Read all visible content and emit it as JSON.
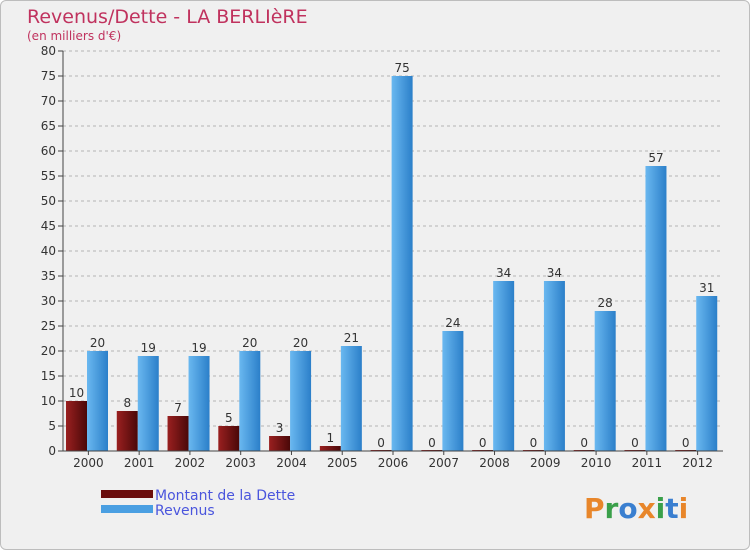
{
  "chart_data": {
    "type": "bar",
    "title": "Revenus/Dette - LA BERLIèRE",
    "subtitle": "(en milliers d'€)",
    "xlabel": "",
    "ylabel": "",
    "ylim": [
      0,
      80
    ],
    "yticks": [
      "0",
      "5",
      "10",
      "15",
      "20",
      "25",
      "30",
      "35",
      "40",
      "45",
      "50",
      "55",
      "60",
      "65",
      "70",
      "75",
      "80"
    ],
    "grid": true,
    "categories": [
      "2000",
      "2001",
      "2002",
      "2003",
      "2004",
      "2005",
      "2006",
      "2007",
      "2008",
      "2009",
      "2010",
      "2011",
      "2012"
    ],
    "series": [
      {
        "name": "Montant de la Dette",
        "color": "#7a1515",
        "values": [
          10,
          8,
          7,
          5,
          3,
          1,
          0,
          0,
          0,
          0,
          0,
          0,
          0
        ],
        "labels": [
          "10",
          "8",
          "7",
          "5",
          "3",
          "1",
          "0",
          "0",
          "0",
          "0",
          "0",
          "0",
          "0"
        ]
      },
      {
        "name": "Revenus",
        "color": "#4a9fe2",
        "values": [
          20,
          19,
          19,
          20,
          20,
          21,
          75,
          24,
          34,
          34,
          28,
          57,
          31
        ],
        "labels": [
          "20",
          "19",
          "19",
          "20",
          "20",
          "21",
          "75",
          "24",
          "34",
          "34",
          "28",
          "57",
          "31"
        ]
      }
    ],
    "legend": "bottom-left"
  },
  "brand": {
    "letters": [
      "P",
      "r",
      "o",
      "x",
      "i",
      "t",
      "i"
    ],
    "colors": [
      "#e8862a",
      "#3aa04a",
      "#3a7fd0",
      "#e8862a",
      "#3aa04a",
      "#3a7fd0",
      "#e8862a"
    ]
  }
}
